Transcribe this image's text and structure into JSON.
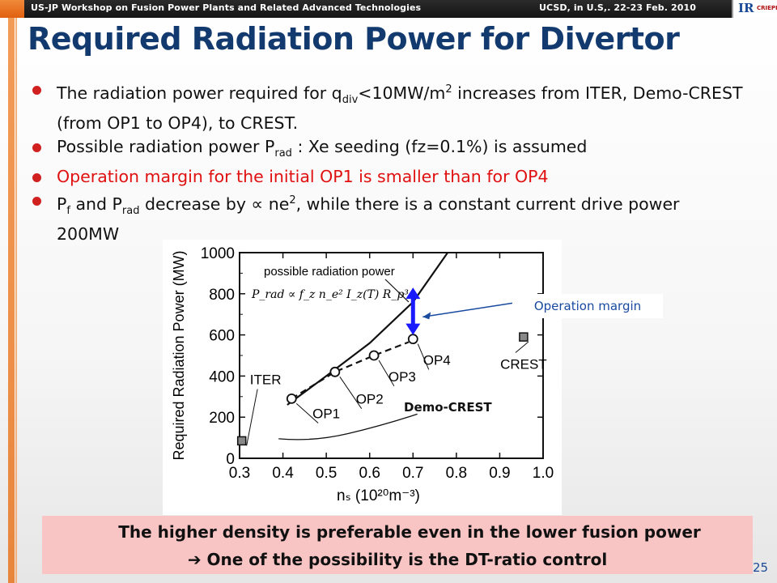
{
  "header": {
    "left_text": "US-JP  Workshop on Fusion Power Plants and Related Advanced Technologies",
    "right_text": "UCSD, in U.S,. 22-23 Feb. 2010",
    "logo_ir": "IR",
    "logo_sub": "CRIEPI"
  },
  "title": "Required Radiation Power for Divertor",
  "bullets": [
    {
      "pre": "The radiation power required for q",
      "sub": "div",
      "mid": "<10MW/m",
      "sup": "2",
      "post": " increases from ITER, Demo-CREST (from OP1 to OP4), to CREST."
    },
    {
      "pre": "Possible radiation power P",
      "sub": "rad",
      "post": " : Xe seeding (fz=0.1%) is assumed"
    },
    {
      "text": "Operation margin for the initial OP1 is smaller than for OP4"
    },
    {
      "pre": "P",
      "sub1": "f",
      "mid": " and P",
      "sub2": "rad",
      "mid2": " decrease by ∝ ne",
      "sup": "2",
      "post": ", while there is a constant current drive power 200MW"
    }
  ],
  "callout": "Operation margin",
  "demo_label": "Demo-CREST",
  "conclusion": {
    "line1": "The higher density is preferable even in the lower fusion power",
    "line2": "➔ One of the possibility is the DT-ratio control"
  },
  "page_number": "25",
  "colors": {
    "title": "#123a6e",
    "bullet_dot": "#d02020",
    "red_text": "#e01010",
    "arrow": "#1a1aff",
    "callout_text": "#1a4aa0",
    "conclusion_bg": "#f9c4c4"
  },
  "chart_data": {
    "type": "line",
    "xlabel": "nₛ  (10²⁰m⁻³)",
    "ylabel": "Required Radiation Power (MW)",
    "xlim": [
      0.3,
      1.0
    ],
    "ylim": [
      0,
      1000
    ],
    "xticks": [
      "0.3",
      "0.4",
      "0.5",
      "0.6",
      "0.7",
      "0.8",
      "0.9",
      "1.0"
    ],
    "yticks": [
      "0",
      "200",
      "400",
      "600",
      "800",
      "1000"
    ],
    "possible_curve_label": "possible radiation power",
    "formula": "P_rad ∝ f_z n_e² I_z(T) R_p³",
    "series": [
      {
        "name": "possible radiation power",
        "style": "solid",
        "x": [
          0.41,
          0.5,
          0.6,
          0.7,
          0.78
        ],
        "y": [
          260,
          400,
          560,
          760,
          1000
        ]
      },
      {
        "name": "Demo-CREST",
        "style": "dashed",
        "x": [
          0.42,
          0.52,
          0.61,
          0.69
        ],
        "y": [
          290,
          420,
          500,
          565
        ]
      }
    ],
    "points": [
      {
        "label": "ITER",
        "x": 0.305,
        "y": 85,
        "marker": "square"
      },
      {
        "label": "OP1",
        "x": 0.42,
        "y": 290,
        "marker": "circle"
      },
      {
        "label": "OP2",
        "x": 0.52,
        "y": 420,
        "marker": "circle"
      },
      {
        "label": "OP3",
        "x": 0.61,
        "y": 500,
        "marker": "circle"
      },
      {
        "label": "OP4",
        "x": 0.7,
        "y": 580,
        "marker": "circle"
      },
      {
        "label": "CREST",
        "x": 0.955,
        "y": 590,
        "marker": "square"
      }
    ],
    "margin": {
      "x": 0.7,
      "y_low": 600,
      "y_high": 830
    }
  }
}
